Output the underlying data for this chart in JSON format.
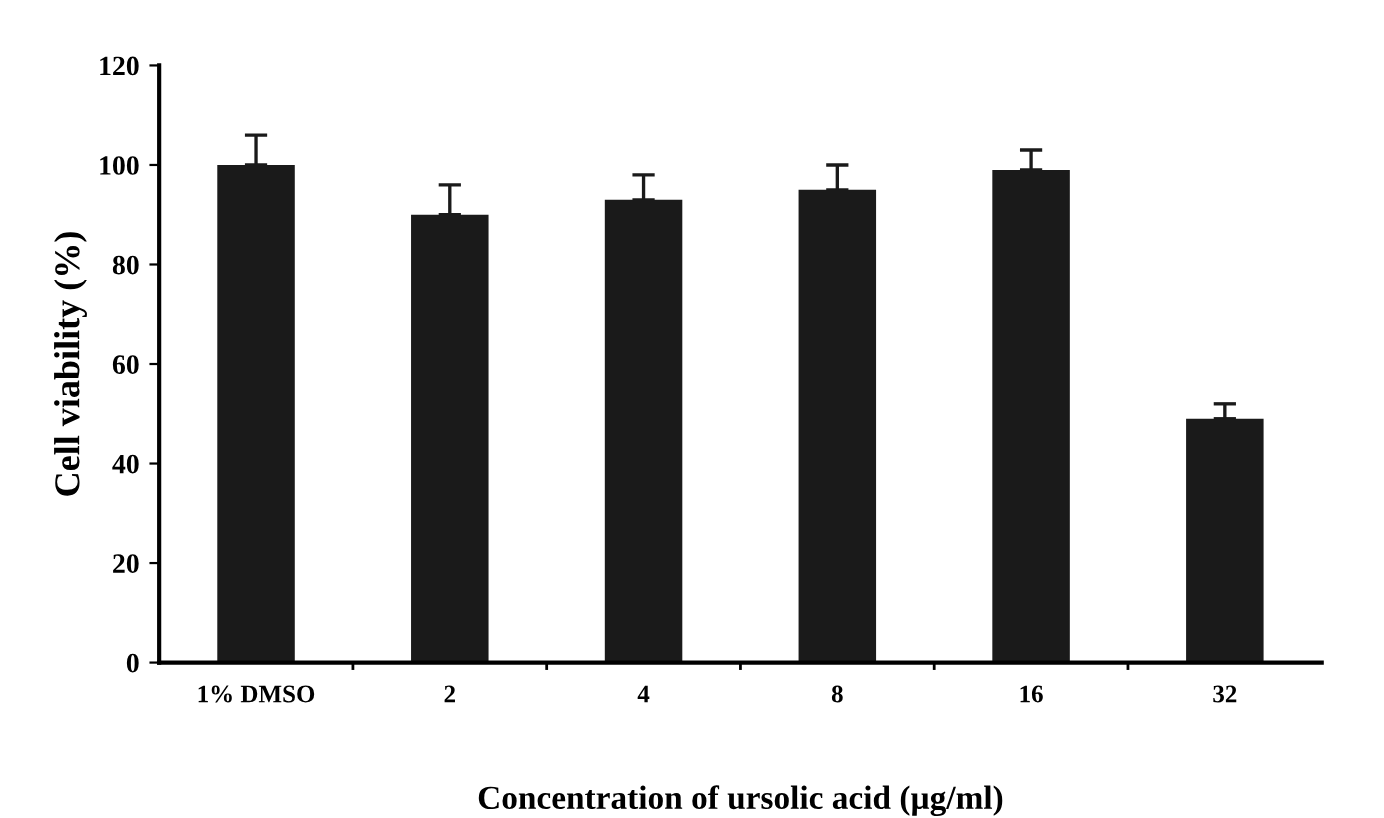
{
  "chart_data": {
    "type": "bar",
    "xlabel": "Concentration of ursolic acid (µg/ml)",
    "ylabel": "Cell viability (%)",
    "categories": [
      "1% DMSO",
      "2",
      "4",
      "8",
      "16",
      "32"
    ],
    "values": [
      100,
      90,
      93,
      95,
      99,
      49
    ],
    "errors": [
      [
        100,
        106
      ],
      [
        90,
        96
      ],
      [
        93,
        98
      ],
      [
        95,
        100
      ],
      [
        99,
        103
      ],
      [
        49,
        52
      ]
    ],
    "color": "#1a1a1a",
    "ylim": [
      0,
      120
    ],
    "yticks": [
      0,
      20,
      40,
      60,
      80,
      100,
      120
    ],
    "grid": false
  }
}
